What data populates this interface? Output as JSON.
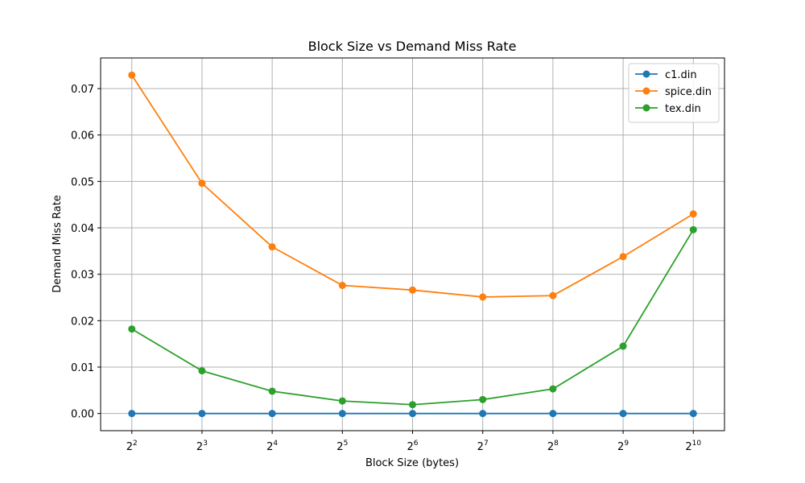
{
  "chart_data": {
    "type": "line",
    "title": "Block Size vs Demand Miss Rate",
    "xlabel": "Block Size (bytes)",
    "ylabel": "Demand Miss Rate",
    "x": [
      4,
      8,
      16,
      32,
      64,
      128,
      256,
      512,
      1024
    ],
    "x_scale": "log2",
    "x_ticks": [
      {
        "base": "2",
        "exp": "2"
      },
      {
        "base": "2",
        "exp": "3"
      },
      {
        "base": "2",
        "exp": "4"
      },
      {
        "base": "2",
        "exp": "5"
      },
      {
        "base": "2",
        "exp": "6"
      },
      {
        "base": "2",
        "exp": "7"
      },
      {
        "base": "2",
        "exp": "8"
      },
      {
        "base": "2",
        "exp": "9"
      },
      {
        "base": "2",
        "exp": "10"
      }
    ],
    "y_ticks": [
      "0.00",
      "0.01",
      "0.02",
      "0.03",
      "0.04",
      "0.05",
      "0.06",
      "0.07"
    ],
    "ylim": [
      -0.0037,
      0.0766
    ],
    "grid": true,
    "legend_position": "top-right",
    "series": [
      {
        "name": "c1.din",
        "color": "#1f77b4",
        "values": [
          0.0,
          0.0,
          0.0,
          0.0,
          0.0,
          0.0,
          0.0,
          0.0,
          0.0
        ]
      },
      {
        "name": "spice.din",
        "color": "#ff7f0e",
        "values": [
          0.0729,
          0.0496,
          0.0359,
          0.0276,
          0.0266,
          0.0251,
          0.0254,
          0.0338,
          0.043
        ]
      },
      {
        "name": "tex.din",
        "color": "#2ca02c",
        "values": [
          0.0182,
          0.0092,
          0.0048,
          0.0027,
          0.0019,
          0.003,
          0.0053,
          0.0145,
          0.0396
        ]
      }
    ]
  }
}
